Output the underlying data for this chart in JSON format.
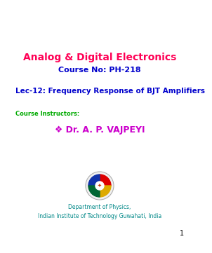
{
  "title_line1": "Analog & Digital Electronics",
  "title_line2": "Course No: PH-218",
  "lec_title": "Lec-12: Frequency Response of BJT Amplifiers",
  "course_instructors_label": "Course Instructors:",
  "instructor": "❖ Dr. A. P. VAJPEYI",
  "dept_line1": "Department of Physics,",
  "dept_line2": "Indian Institute of Technology Guwahati, India",
  "slide_number": "1",
  "bg_color": "#ffffff",
  "title_color": "#ff0055",
  "subtitle_color": "#0000cc",
  "lec_color": "#0000cc",
  "instructor_label_color": "#00aa00",
  "instructor_color": "#cc00cc",
  "dept_color": "#008888",
  "slide_num_color": "#000000"
}
